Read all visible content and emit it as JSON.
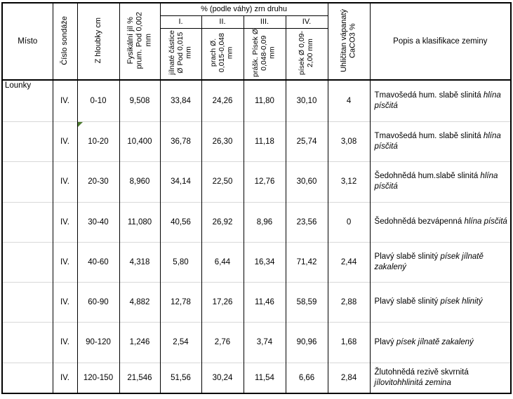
{
  "t": {
    "h": {
      "misto": "Místo",
      "cislo": "Číslo sondáže",
      "hloubka": "Z hloubky cm",
      "fyz": "Fysikální jíl %\nprum. Pod 0,002\nmm",
      "group": "% (podle váhy) zrn druhu",
      "r1": "I.",
      "r2": "II.",
      "r3": "III.",
      "r4": "IV.",
      "s1": "jílnaté částice\nØ Pod 0,015\nmm",
      "s2": "prach Ø.\n0,015-0,048\nmm",
      "s3": "prášk. Písek Ø\n0,048-0,09\nmm",
      "s4": "písek Ø 0,09-\n2,00 mm",
      "caco3": "Uhličitan vápanatý\nCaCO3 %",
      "popis": "Popis a klasifikace zeminy"
    },
    "misto_value": "Lounky",
    "rows": [
      {
        "sonda": "IV.",
        "depth": "0-10",
        "fyz": "9,508",
        "c1": "33,84",
        "c2": "24,26",
        "c3": "11,80",
        "c4": "30,10",
        "caco3": "4",
        "d": "Tmavošedá hum. slabě slinitá ",
        "di": "hlína písčitá"
      },
      {
        "sonda": "IV.",
        "depth": "10-20",
        "fyz": "10,400",
        "c1": "36,78",
        "c2": "26,30",
        "c3": "11,18",
        "c4": "25,74",
        "caco3": "3,08",
        "d": "Tmavošedá hum. slabě slinitá ",
        "di": "hlína písčitá"
      },
      {
        "sonda": "IV.",
        "depth": "20-30",
        "fyz": "8,960",
        "c1": "34,14",
        "c2": "22,50",
        "c3": "12,76",
        "c4": "30,60",
        "caco3": "3,12",
        "d": "Šedohnědá hum.slabě slinitá ",
        "di": "hlína písčitá"
      },
      {
        "sonda": "IV.",
        "depth": "30-40",
        "fyz": "11,080",
        "c1": "40,56",
        "c2": "26,92",
        "c3": "8,96",
        "c4": "23,56",
        "caco3": "0",
        "d": "Šedohnědá bezvápenná ",
        "di": "hlína písčitá"
      },
      {
        "sonda": "IV.",
        "depth": "40-60",
        "fyz": "4,318",
        "c1": "5,80",
        "c2": "6,44",
        "c3": "16,34",
        "c4": "71,42",
        "caco3": "2,44",
        "d": "Plavý slabě slinitý ",
        "di": "písek jílnatě zakalený"
      },
      {
        "sonda": "IV.",
        "depth": "60-90",
        "fyz": "4,882",
        "c1": "12,78",
        "c2": "17,26",
        "c3": "11,46",
        "c4": "58,59",
        "caco3": "2,88",
        "d": "Plavý slabě slinitý ",
        "di": "písek hlinitý"
      },
      {
        "sonda": "IV.",
        "depth": "90-120",
        "fyz": "1,246",
        "c1": "2,54",
        "c2": "2,76",
        "c3": "3,74",
        "c4": "90,96",
        "caco3": "1,68",
        "d": "Plavý ",
        "di": "písek jílnatě zakalený"
      },
      {
        "sonda": "IV.",
        "depth": "120-150",
        "fyz": "21,546",
        "c1": "51,56",
        "c2": "30,24",
        "c3": "11,54",
        "c4": "6,66",
        "caco3": "2,84",
        "d": "Žlutohnědá rezivě skvrnitá ",
        "di": "jílovitohhlinitá zemina"
      }
    ],
    "colors": {
      "grid": "#000000",
      "row_divider": "#d8d8d8",
      "flag_green": "#4e7b30"
    }
  }
}
